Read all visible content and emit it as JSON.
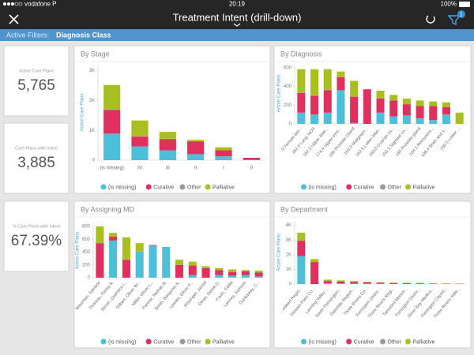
{
  "status_bar": {
    "carrier": "vodafone P",
    "time": "20:19",
    "battery": "100%"
  },
  "header": {
    "title": "Treatment Intent (drill-down)",
    "filter_count": 1
  },
  "filter_bar": {
    "label": "Active Filters:",
    "value": "Diagnosis Class"
  },
  "kpis": [
    {
      "label": "Active Care Plans",
      "value": "5,765"
    },
    {
      "label": "Care Plans with Intent",
      "value": "3,885"
    },
    {
      "label": "% Care Plans with Intent",
      "value": "67.39%"
    }
  ],
  "chart_data": [
    {
      "type": "bar",
      "stacked": true,
      "title": "By Stage",
      "y_label": "Active Care Plans",
      "categories": [
        "(is missing)",
        "IV",
        "III",
        "II",
        "I",
        "0"
      ],
      "series": [
        {
          "name": "(is missing)",
          "color": "#4dbfd9",
          "values": [
            890,
            460,
            330,
            200,
            130,
            10
          ]
        },
        {
          "name": "Curative",
          "color": "#e0305f",
          "values": [
            790,
            330,
            380,
            430,
            200,
            70
          ]
        },
        {
          "name": "Other",
          "color": "#9a9a9a",
          "values": [
            20,
            10,
            10,
            0,
            0,
            0
          ]
        },
        {
          "name": "Palliative",
          "color": "#a8bf1f",
          "values": [
            820,
            530,
            230,
            50,
            100,
            0
          ]
        }
      ],
      "ylim": [
        0,
        3200
      ],
      "yticks": [
        0,
        {
          "value": 1000,
          "label": "1K"
        },
        {
          "value": 2000,
          "label": "2K"
        },
        {
          "value": 3000,
          "label": "3K"
        }
      ]
    },
    {
      "type": "bar",
      "stacked": true,
      "title": "By Diagnosis",
      "y_label": "Active Care Plans",
      "categories": [
        ".9 Female bre...",
        "162.9 Lung, NOS",
        "162.3 Upper lobe...",
        "174.4 Upper-inne...",
        "185 Prostate Gland",
        "159.9 Malignant...",
        "162.5 Lower lobe...",
        "183.0 Ovarian ca...",
        "153.3 Sigmoid co...",
        "185 Prostate gland",
        "154.1 Rectum/re...",
        "198.4 Brain and s...",
        "150.5 Lower ..."
      ],
      "series": [
        {
          "name": "(is missing)",
          "color": "#4dbfd9",
          "values": [
            120,
            100,
            120,
            360,
            10,
            0,
            120,
            80,
            90,
            60,
            40,
            100,
            0
          ]
        },
        {
          "name": "Curative",
          "color": "#e0305f",
          "values": [
            210,
            200,
            240,
            140,
            280,
            370,
            150,
            170,
            120,
            130,
            150,
            80,
            0
          ]
        },
        {
          "name": "Other",
          "color": "#9a9a9a",
          "values": [
            5,
            5,
            5,
            0,
            0,
            0,
            5,
            0,
            0,
            0,
            0,
            0,
            0
          ]
        },
        {
          "name": "Palliative",
          "color": "#a8bf1f",
          "values": [
            250,
            280,
            220,
            60,
            170,
            0,
            80,
            60,
            60,
            60,
            50,
            50,
            120
          ]
        }
      ],
      "ylim": [
        0,
        650
      ],
      "yticks": [
        0,
        200,
        400,
        600
      ]
    },
    {
      "type": "bar",
      "stacked": true,
      "title": "By Assigning MD",
      "y_label": "Active Care Plans",
      "categories": [
        "Wiseman, Samson",
        "Thoreau, Farley K.",
        "Simon, Quentica I...",
        "Gilbert, Oliver W...",
        "Miller, Oliver L...",
        "Partner, Nathan B.",
        "Smith, Benjamin K.",
        "Lowder, Oliver F...",
        "Kissinger, Jarred",
        "Oliver, Derek G.",
        "Fauts, Eddie",
        "Lenney, Samson",
        "Dunkaway, C..."
      ],
      "series": [
        {
          "name": "(is missing)",
          "color": "#4dbfd9",
          "values": [
            0,
            580,
            0,
            410,
            500,
            480,
            0,
            40,
            0,
            40,
            30,
            40,
            20
          ]
        },
        {
          "name": "Curative",
          "color": "#e0305f",
          "values": [
            540,
            60,
            280,
            0,
            10,
            0,
            200,
            150,
            150,
            80,
            60,
            60,
            60
          ]
        },
        {
          "name": "Other",
          "color": "#9a9a9a",
          "values": [
            0,
            0,
            0,
            0,
            0,
            0,
            0,
            0,
            0,
            0,
            0,
            0,
            0
          ]
        },
        {
          "name": "Palliative",
          "color": "#a8bf1f",
          "values": [
            260,
            60,
            350,
            130,
            0,
            0,
            80,
            60,
            30,
            30,
            40,
            20,
            30
          ]
        }
      ],
      "ylim": [
        0,
        850
      ],
      "yticks": [
        0,
        200,
        400,
        600,
        800
      ]
    },
    {
      "type": "bar",
      "stacked": true,
      "title": "By Department",
      "y_label": "Active Care Plans",
      "categories": [
        "...ndeed Regio...",
        "Stewart Point Co...",
        "Lanning Valley ...",
        "South Pennington...",
        "Dolomite Region...",
        "Three Rivers Co...",
        "Ferrington Distric...",
        "Three Rivers Regi...",
        "Tamarind Memor...",
        "Ferrington Distric...",
        "Silver Bay Medica...",
        "Ferrington Citysid...",
        "Three Rivers Valle..."
      ],
      "series": [
        {
          "name": "(is missing)",
          "color": "#4dbfd9",
          "values": [
            1900,
            0,
            50,
            40,
            30,
            20,
            20,
            10,
            10,
            10,
            10,
            0,
            0
          ]
        },
        {
          "name": "Curative",
          "color": "#e0305f",
          "values": [
            1050,
            1500,
            150,
            130,
            110,
            90,
            70,
            60,
            50,
            40,
            30,
            20,
            20
          ]
        },
        {
          "name": "Other",
          "color": "#9a9a9a",
          "values": [
            0,
            0,
            0,
            0,
            0,
            0,
            0,
            0,
            0,
            0,
            0,
            0,
            0
          ]
        },
        {
          "name": "Palliative",
          "color": "#a8bf1f",
          "values": [
            550,
            200,
            100,
            80,
            60,
            40,
            30,
            30,
            30,
            30,
            20,
            20,
            10
          ]
        }
      ],
      "ylim": [
        0,
        4300
      ],
      "yticks": [
        0,
        {
          "value": 1000,
          "label": "1K"
        },
        {
          "value": 2000,
          "label": "2K"
        },
        {
          "value": 3000,
          "label": "3K"
        },
        {
          "value": 4000,
          "label": "4K"
        }
      ]
    }
  ]
}
